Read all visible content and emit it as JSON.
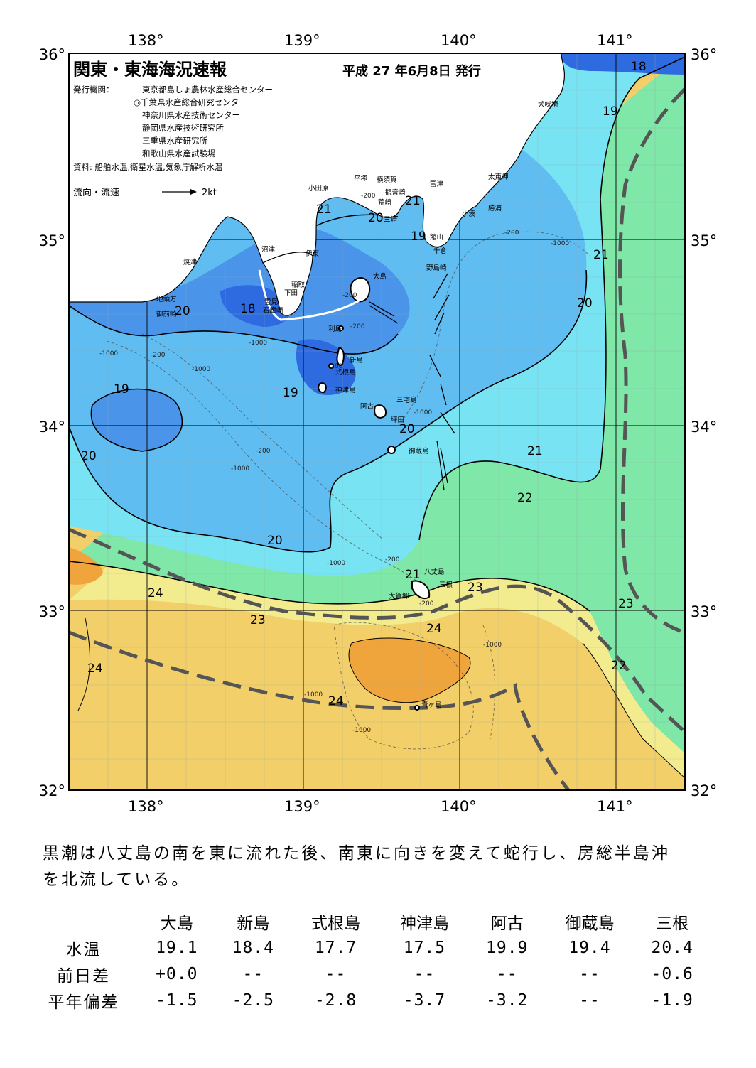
{
  "map": {
    "title": "関東・東海海況速報",
    "issue_date": "平成 27 年6月8日 発行",
    "issuers_label": "発行機関：",
    "issuers": [
      "東京都島しょ農林水産総合センター",
      "◎千葉県水産総合研究センター",
      "神奈川県水産技術センター",
      "静岡県水産技術研究所",
      "三重県水産研究所",
      "和歌山県水産試験場"
    ],
    "source": "資料: 船舶水温,衛星水温,気象庁解析水温",
    "current_legend_label": "流向・流速",
    "current_legend_speed": "2kt",
    "lon_labels": [
      "138°",
      "139°",
      "140°",
      "141°"
    ],
    "lat_labels": [
      "36°",
      "35°",
      "34°",
      "33°",
      "32°"
    ],
    "isotherm_labels": [
      "18",
      "19",
      "21",
      "20",
      "21",
      "19",
      "21",
      "20",
      "18",
      "19",
      "19",
      "20",
      "20",
      "21",
      "22",
      "20",
      "21",
      "23",
      "24",
      "23",
      "24",
      "24",
      "24",
      "23",
      "22"
    ],
    "depth_labels": [
      "-200",
      "-200",
      "-200",
      "-200",
      "-1000",
      "-200",
      "-1000",
      "-200",
      "-1000",
      "-1000",
      "-1000",
      "-1000",
      "-200",
      "-200",
      "-1000",
      "-1000",
      "-1000",
      "-1000",
      "-200"
    ],
    "place_names": [
      "犬吠埼",
      "太東岬",
      "勝浦",
      "小湊",
      "館山",
      "千倉",
      "野島崎",
      "富津",
      "観音崎",
      "横須賀",
      "平塚",
      "荒崎",
      "三崎",
      "小田原",
      "沼津",
      "伊東",
      "稲取",
      "下田",
      "雲見",
      "石廊崎",
      "焼津",
      "地頭方",
      "御前崎",
      "大島",
      "利島",
      "新島",
      "式根島",
      "神津島",
      "三宅島",
      "阿古",
      "坪田",
      "御蔵島",
      "八丈島",
      "三根",
      "大賀郷",
      "青ヶ島"
    ],
    "colors": {
      "t18": "#2e6be0",
      "t19": "#4a95ea",
      "t20": "#5fbdf2",
      "t21": "#78e3f2",
      "t22": "#7fe7a8",
      "t23": "#f3ec8e",
      "t24": "#f3cf6a",
      "t25": "#f0a53c",
      "land": "#ffffff",
      "kuroshio_axis": "#555555"
    }
  },
  "summary": "黒潮は八丈島の南を東に流れた後、南東に向きを変えて蛇行し、房総半島沖を北流している。",
  "table": {
    "header": [
      "",
      "大島",
      "新島",
      "式根島",
      "神津島",
      "阿古",
      "御蔵島",
      "三根"
    ],
    "rows": [
      {
        "label": "水温",
        "values": [
          "19.1",
          "18.4",
          "17.7",
          "17.5",
          "19.9",
          "19.4",
          "20.4"
        ]
      },
      {
        "label": "前日差",
        "values": [
          "+0.0",
          "--",
          "--",
          "--",
          "--",
          "--",
          "-0.6"
        ]
      },
      {
        "label": "平年偏差",
        "values": [
          "-1.5",
          "-2.5",
          "-2.8",
          "-3.7",
          "-3.2",
          "--",
          "-1.9"
        ]
      }
    ]
  }
}
